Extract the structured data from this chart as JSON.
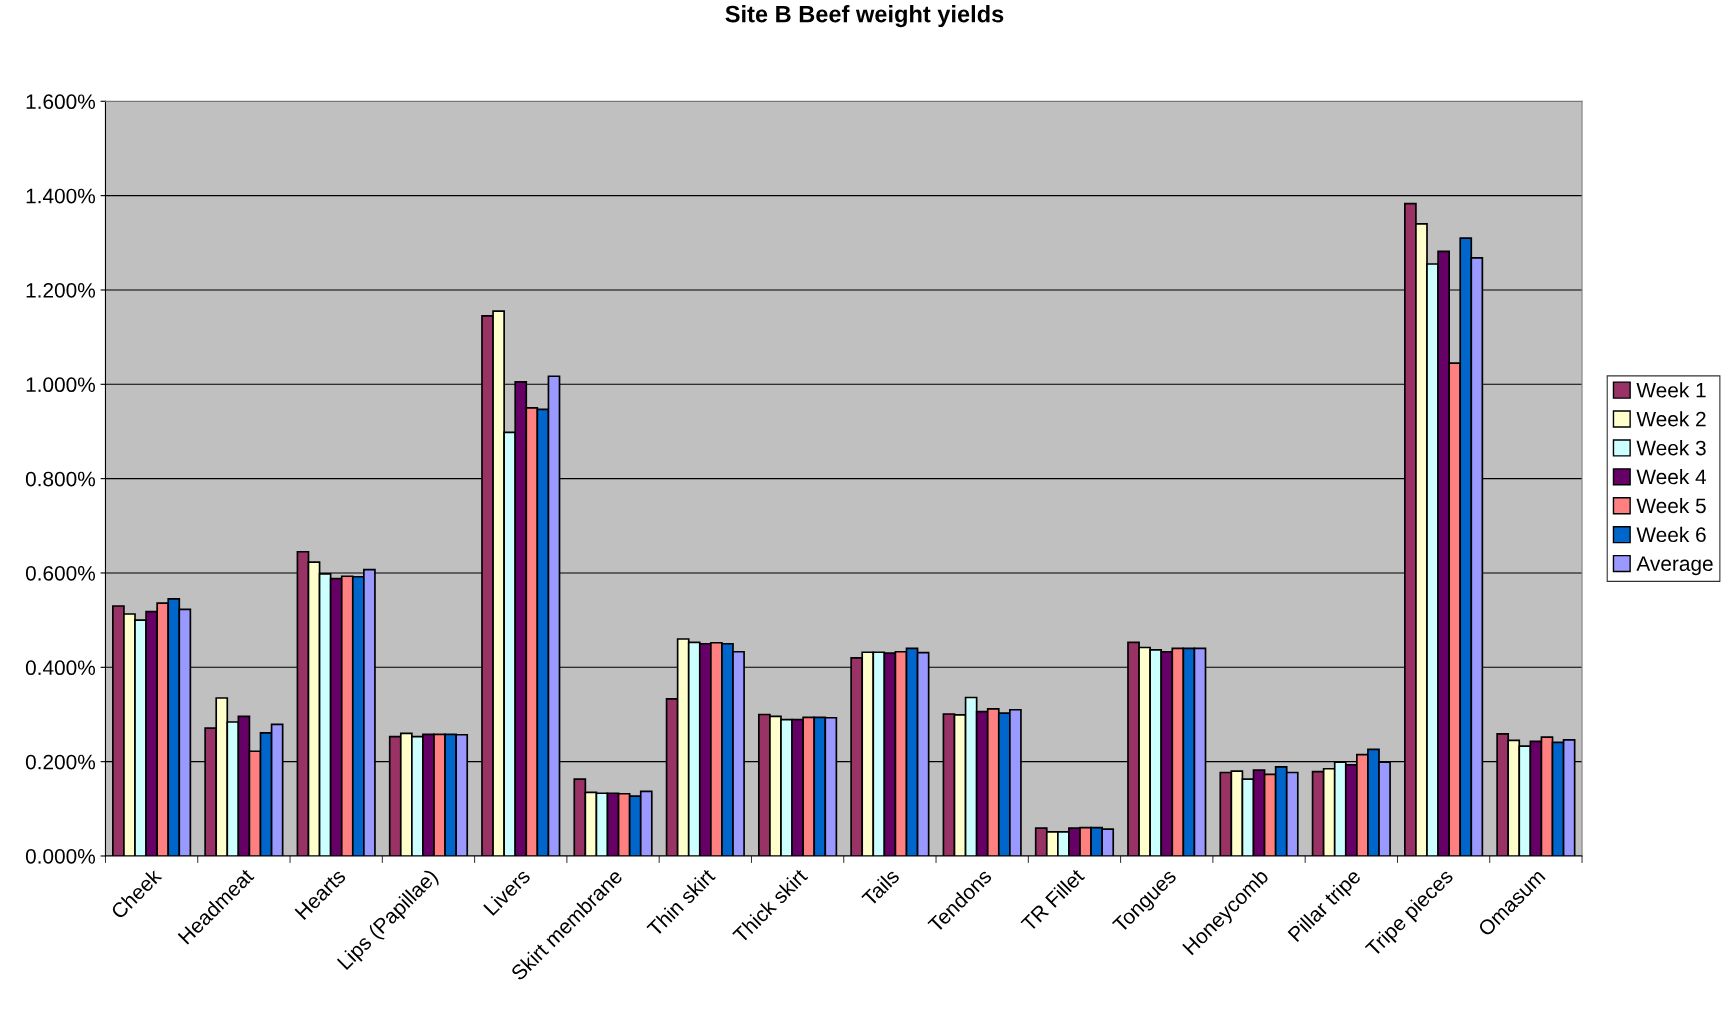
{
  "chart_data": {
    "type": "bar",
    "title": "Site B Beef weight yields",
    "categories": [
      "Cheek",
      "Headmeat",
      "Hearts",
      "Lips (Papillae)",
      "Livers",
      "Skirt membrane",
      "Thin skirt",
      "Thick skirt",
      "Tails",
      "Tendons",
      "TR Fillet",
      "Tongues",
      "Honeycomb",
      "Pillar tripe",
      "Tripe pieces",
      "Omasum"
    ],
    "series": [
      {
        "name": "Week 1",
        "color": "#993366",
        "values": [
          0.53,
          0.271,
          0.645,
          0.253,
          1.145,
          0.163,
          0.333,
          0.3,
          0.42,
          0.301,
          0.059,
          0.453,
          0.177,
          0.179,
          1.383,
          0.259
        ]
      },
      {
        "name": "Week 2",
        "color": "#ffffcc",
        "values": [
          0.513,
          0.335,
          0.623,
          0.26,
          1.155,
          0.135,
          0.46,
          0.296,
          0.432,
          0.299,
          0.051,
          0.442,
          0.18,
          0.185,
          1.34,
          0.245
        ]
      },
      {
        "name": "Week 3",
        "color": "#ccffff",
        "values": [
          0.5,
          0.284,
          0.598,
          0.253,
          0.898,
          0.133,
          0.453,
          0.289,
          0.432,
          0.336,
          0.051,
          0.437,
          0.163,
          0.199,
          1.255,
          0.233
        ]
      },
      {
        "name": "Week 4",
        "color": "#660066",
        "values": [
          0.518,
          0.296,
          0.588,
          0.258,
          1.005,
          0.133,
          0.45,
          0.289,
          0.43,
          0.306,
          0.059,
          0.433,
          0.182,
          0.193,
          1.282,
          0.243
        ]
      },
      {
        "name": "Week 5",
        "color": "#ff8080",
        "values": [
          0.536,
          0.222,
          0.593,
          0.258,
          0.95,
          0.132,
          0.452,
          0.294,
          0.433,
          0.312,
          0.06,
          0.44,
          0.173,
          0.215,
          1.045,
          0.252
        ]
      },
      {
        "name": "Week 6",
        "color": "#0066cc",
        "values": [
          0.545,
          0.261,
          0.592,
          0.258,
          0.947,
          0.127,
          0.45,
          0.294,
          0.44,
          0.303,
          0.06,
          0.44,
          0.189,
          0.226,
          1.31,
          0.241
        ]
      },
      {
        "name": "Average",
        "color": "#9999ff",
        "values": [
          0.523,
          0.279,
          0.607,
          0.257,
          1.017,
          0.137,
          0.433,
          0.293,
          0.431,
          0.31,
          0.057,
          0.44,
          0.177,
          0.199,
          1.268,
          0.246
        ]
      }
    ],
    "ylim": [
      0,
      1.6
    ],
    "yticks": [
      {
        "value": 0,
        "label": "0.000%"
      },
      {
        "value": 0.2,
        "label": "0.200%"
      },
      {
        "value": 0.4,
        "label": "0.400%"
      },
      {
        "value": 0.6,
        "label": "0.600%"
      },
      {
        "value": 0.8,
        "label": "0.800%"
      },
      {
        "value": 1.0,
        "label": "1.000%"
      },
      {
        "value": 1.2,
        "label": "1.200%"
      },
      {
        "value": 1.4,
        "label": "1.400%"
      },
      {
        "value": 1.6,
        "label": "1.600%"
      }
    ],
    "grid": "y",
    "legend": "right"
  }
}
